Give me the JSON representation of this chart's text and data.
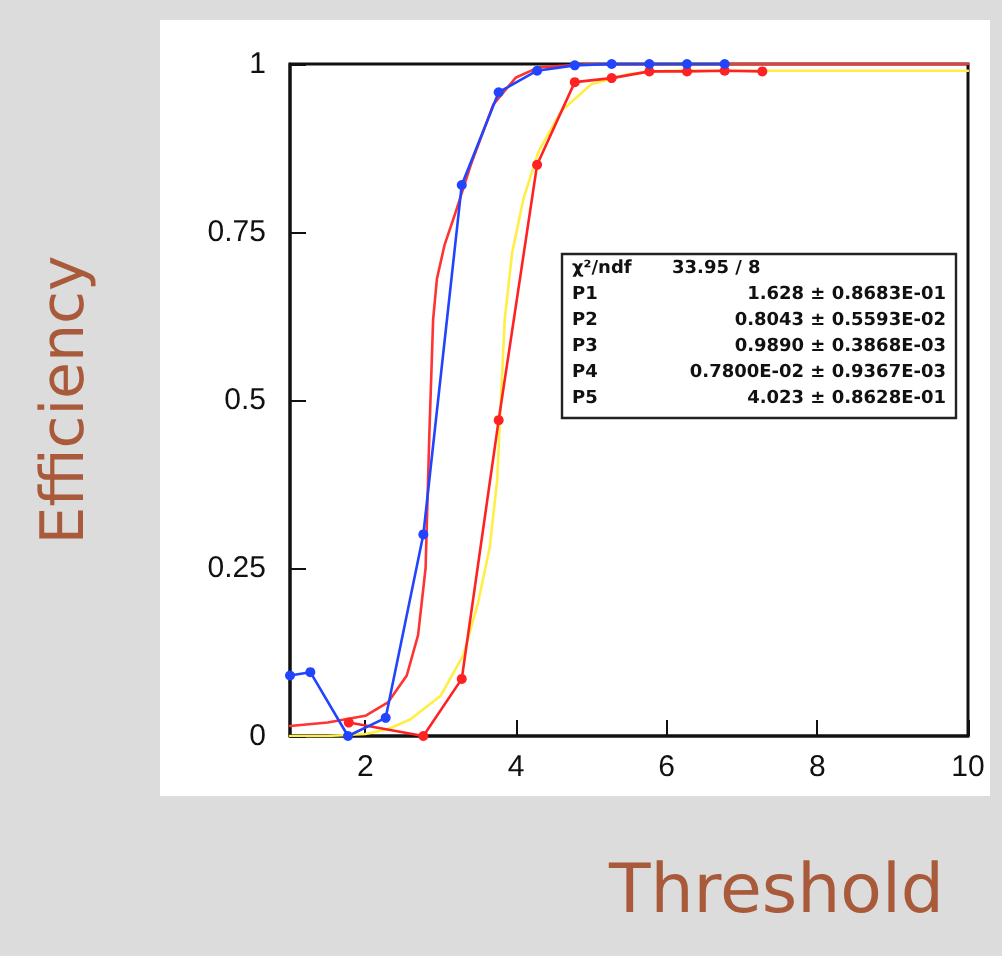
{
  "chart_data": {
    "type": "line",
    "xlabel": "Threshold",
    "ylabel": "Efficiency",
    "xlim": [
      1,
      10
    ],
    "xticks": [
      2,
      4,
      6,
      8,
      10
    ],
    "ylim": [
      0,
      1
    ],
    "yticks": [
      0,
      0.25,
      0.5,
      0.75,
      1
    ],
    "line_style": "solid",
    "annotations": [
      "χ²/ndf 33.95 / 8",
      "P1 1.628 ± 0.8683E-01",
      "P2 0.8043 ± 0.5593E-02",
      "P3 0.9890 ± 0.3868E-03",
      "P4 0.7800E-02 ± 0.9367E-03",
      "P5 4.023 ± 0.8628E-01"
    ],
    "series": [
      {
        "color": "#ffee44",
        "marker": "none",
        "x": [
          1,
          1.5,
          2,
          2.3,
          2.6,
          3,
          3.3,
          3.5,
          3.65,
          3.75,
          3.8,
          3.85,
          3.95,
          4.1,
          4.3,
          4.6,
          5,
          5.5,
          6,
          7,
          8,
          10
        ],
        "values": [
          0,
          0,
          0.003,
          0.01,
          0.025,
          0.06,
          0.12,
          0.2,
          0.28,
          0.38,
          0.5,
          0.62,
          0.72,
          0.8,
          0.87,
          0.93,
          0.97,
          0.985,
          0.99,
          0.99,
          0.99,
          0.99
        ]
      },
      {
        "color": "#ff3333",
        "marker": "none",
        "x": [
          1,
          1.5,
          2,
          2.3,
          2.55,
          2.7,
          2.8,
          2.85,
          2.9,
          2.95,
          3.05,
          3.2,
          3.4,
          3.7,
          4,
          4.3,
          5,
          6,
          8,
          10
        ],
        "values": [
          0.015,
          0.02,
          0.03,
          0.05,
          0.09,
          0.15,
          0.25,
          0.45,
          0.62,
          0.68,
          0.73,
          0.78,
          0.85,
          0.94,
          0.98,
          0.995,
          1,
          1,
          1,
          1
        ]
      },
      {
        "color": "#ff2222",
        "marker": "circle",
        "x": [
          1.78,
          2.77,
          3.28,
          3.77,
          4.28,
          4.78,
          5.27,
          5.77,
          6.27,
          6.77,
          7.27
        ],
        "values": [
          0.02,
          0,
          0.085,
          0.47,
          0.85,
          0.973,
          0.979,
          0.989,
          0.989,
          0.99,
          0.989
        ]
      },
      {
        "color": "#2244ff",
        "marker": "circle",
        "x": [
          1,
          1.27,
          1.77,
          2.27,
          2.77,
          3.28,
          3.77,
          4.28,
          4.78,
          5.27,
          5.77,
          6.27,
          6.77
        ],
        "values": [
          0.09,
          0.095,
          0,
          0.027,
          0.3,
          0.82,
          0.958,
          0.99,
          0.998,
          1,
          1,
          1,
          1
        ]
      }
    ]
  }
}
